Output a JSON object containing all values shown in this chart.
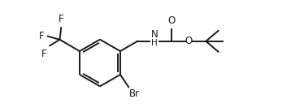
{
  "bg_color": "#ffffff",
  "line_color": "#1a1a1a",
  "line_width": 1.4,
  "font_size": 8.5,
  "figsize": [
    3.58,
    1.38
  ],
  "dpi": 100,
  "xlim": [
    0,
    10.5
  ],
  "ylim": [
    0,
    3.9
  ]
}
